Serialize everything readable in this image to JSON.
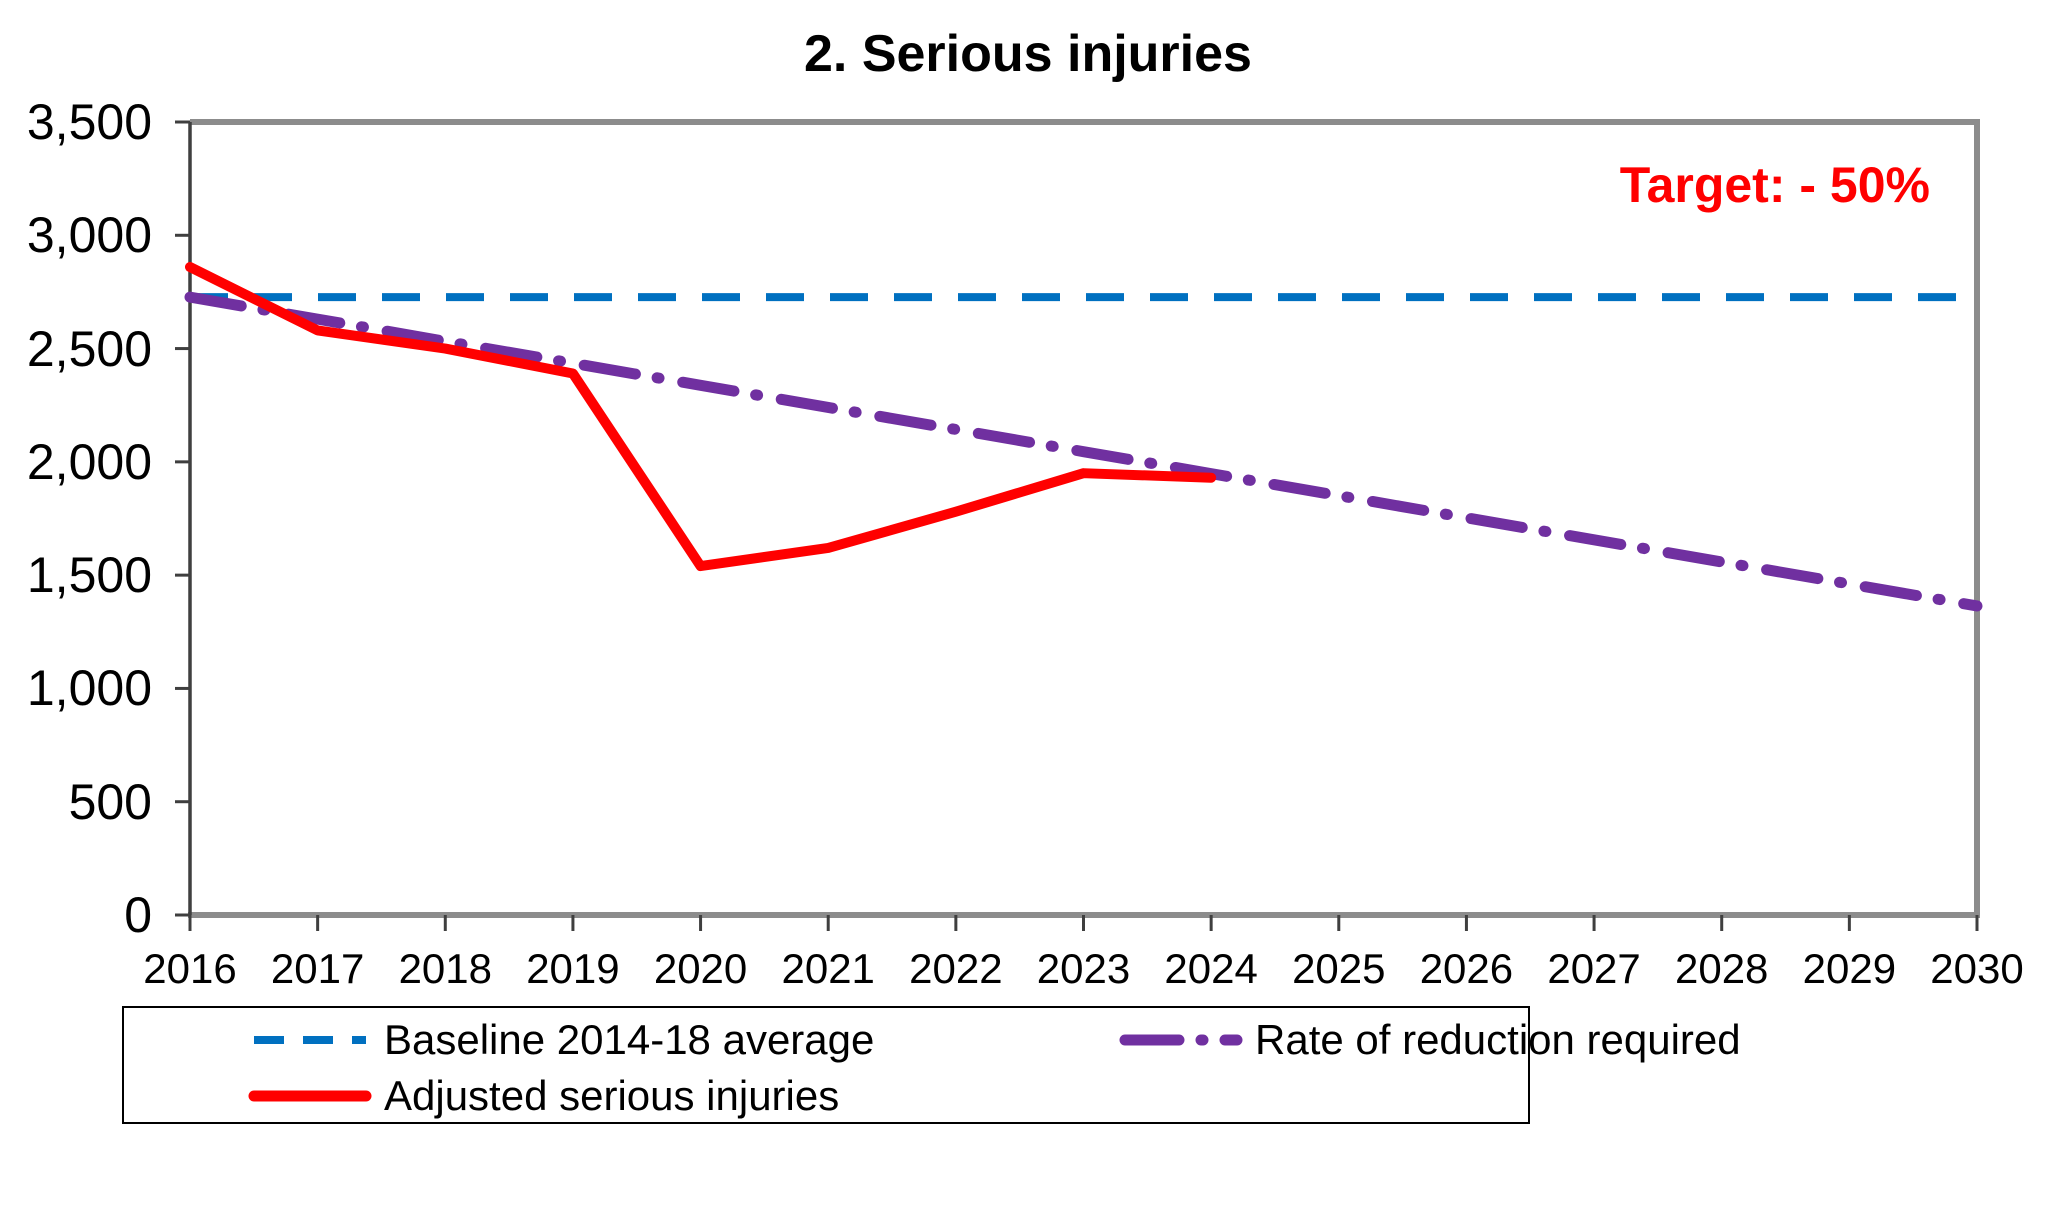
{
  "title": "2. Serious injuries",
  "annotation": {
    "text": "Target: - 50%",
    "color": "#FF0000"
  },
  "chart_data": {
    "type": "line",
    "x": [
      2016,
      2017,
      2018,
      2019,
      2020,
      2021,
      2022,
      2023,
      2024,
      2025,
      2026,
      2027,
      2028,
      2029,
      2030
    ],
    "x_tick_labels": [
      "2016",
      "2017",
      "2018",
      "2019",
      "2020",
      "2021",
      "2022",
      "2023",
      "2024",
      "2025",
      "2026",
      "2027",
      "2028",
      "2029",
      "2030"
    ],
    "ylim": [
      0,
      3500
    ],
    "y_ticks": [
      0,
      500,
      1000,
      1500,
      2000,
      2500,
      3000,
      3500
    ],
    "y_tick_labels": [
      "0",
      "500",
      "1,000",
      "1,500",
      "2,000",
      "2,500",
      "3,000",
      "3,500"
    ],
    "grid": false,
    "legend_position": "bottom",
    "series": [
      {
        "key": "baseline",
        "name": "Baseline 2014-18 average",
        "color": "#0070C0",
        "style": "dashed",
        "values": [
          2727,
          2727,
          2727,
          2727,
          2727,
          2727,
          2727,
          2727,
          2727,
          2727,
          2727,
          2727,
          2727,
          2727,
          2727
        ]
      },
      {
        "key": "reduction-required",
        "name": "Rate of reduction required",
        "color": "#7030A0",
        "style": "dash-dot",
        "values": [
          2727,
          2630,
          2532,
          2435,
          2338,
          2240,
          2143,
          2045,
          1948,
          1851,
          1753,
          1656,
          1558,
          1461,
          1364
        ]
      },
      {
        "key": "adjusted",
        "name": "Adjusted serious injuries",
        "color": "#FF0000",
        "style": "solid",
        "values": [
          2860,
          2580,
          2500,
          2390,
          1540,
          1620,
          1780,
          1950,
          1930,
          null,
          null,
          null,
          null,
          null,
          null
        ]
      }
    ]
  },
  "styles": {
    "plot_border_color": "#8C8C8C",
    "axis_color": "#3F3F3F",
    "text_color": "#000000",
    "background": "#FFFFFF",
    "legend_border_color": "#000000"
  }
}
